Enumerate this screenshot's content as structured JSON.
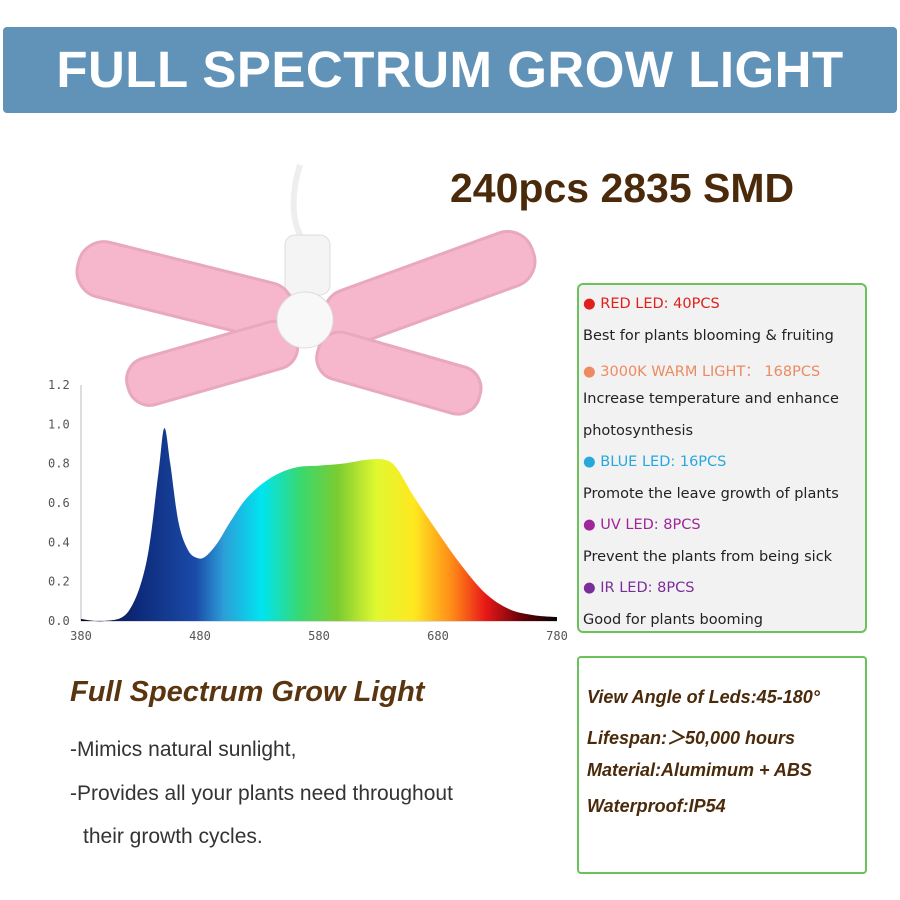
{
  "banner": {
    "title": "FULL SPECTRUM GROW LIGHT"
  },
  "headline": "240pcs 2835 SMD",
  "led_list": [
    {
      "label": "RED LED: 40PCS",
      "color": "#e0201c",
      "desc": "Best for plants blooming & fruiting"
    },
    {
      "label": "3000K WARM LIGHT： 168PCS",
      "color": "#ec8a62",
      "desc": "Increase temperature and enhance photosynthesis"
    },
    {
      "label": "BLUE LED: 16PCS",
      "color": "#27a8dc",
      "desc": "Promote the leave growth of plants"
    },
    {
      "label": "UV LED: 8PCS",
      "color": "#a0249a",
      "desc": "Prevent the plants from being sick"
    },
    {
      "label": "IR LED: 8PCS",
      "color": "#7a2e9a",
      "desc": "Good for plants booming"
    }
  ],
  "desc_line2": "photosynthesis",
  "desc_line1b": "Increase temperature and enhance",
  "specs": [
    "View Angle of Leds:45-180°",
    "Lifespan:＞50,000 hours",
    "Material:Alumimum + ABS",
    "Waterproof:IP54"
  ],
  "feature": {
    "title": "Full Spectrum Grow Light",
    "lines": [
      "-Mimics natural sunlight,",
      "-Provides all your plants need throughout",
      "their growth cycles."
    ]
  },
  "chart_data": {
    "type": "area",
    "title": "",
    "xlabel": "",
    "ylabel": "",
    "xlim": [
      380,
      780
    ],
    "ylim": [
      0,
      1.2
    ],
    "x_ticks": [
      "380",
      "480",
      "580",
      "680",
      "780"
    ],
    "y_ticks": [
      "0.0",
      "0.2",
      "0.4",
      "0.6",
      "0.8",
      "1.0",
      "1.2"
    ],
    "x": [
      380,
      400,
      420,
      435,
      445,
      450,
      455,
      462,
      470,
      478,
      485,
      495,
      505,
      520,
      540,
      560,
      580,
      600,
      620,
      635,
      645,
      660,
      680,
      700,
      720,
      740,
      760,
      780
    ],
    "y": [
      0.01,
      0.0,
      0.05,
      0.3,
      0.75,
      0.98,
      0.8,
      0.5,
      0.36,
      0.32,
      0.33,
      0.4,
      0.5,
      0.63,
      0.73,
      0.78,
      0.79,
      0.8,
      0.82,
      0.82,
      0.78,
      0.63,
      0.45,
      0.28,
      0.14,
      0.06,
      0.03,
      0.02
    ],
    "fill": "visible-spectrum gradient",
    "grid": false
  },
  "colors": {
    "banner": "#6193b9",
    "brown": "#4a2a0a",
    "green_border": "#6cc25a"
  }
}
